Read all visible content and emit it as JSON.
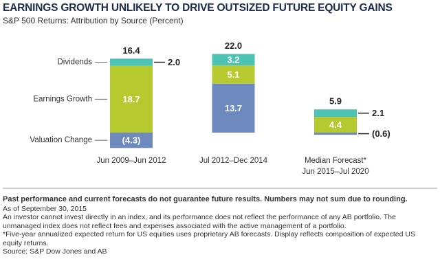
{
  "chart_data": {
    "type": "stacked_bar",
    "title": "EARNINGS GROWTH UNLIKELY TO DRIVE OUTSIZED FUTURE EQUITY GAINS",
    "subtitle": "S&P 500 Returns: Attribution by Source (Percent)",
    "categories": [
      "Jun 2009–Jun 2012",
      "Jul 2012–Dec 2014",
      "Median Forecast*\nJun 2015–Jul 2020"
    ],
    "series": [
      {
        "name": "Valuation Change",
        "color": "#6d89bd",
        "values": [
          -4.3,
          13.7,
          -0.6
        ],
        "value_labels": [
          "(4.3)",
          "13.7",
          "(0.6)"
        ]
      },
      {
        "name": "Earnings Growth",
        "color": "#b6c92f",
        "values": [
          18.7,
          5.1,
          4.4
        ],
        "value_labels": [
          "18.7",
          "5.1",
          "4.4"
        ]
      },
      {
        "name": "Dividends",
        "color": "#4cc3b4",
        "values": [
          2.0,
          3.2,
          2.1
        ],
        "value_labels": [
          "2.0",
          "3.2",
          "2.1"
        ]
      }
    ],
    "totals": [
      16.4,
      22.0,
      5.9
    ],
    "total_labels": [
      "16.4",
      "22.0",
      "5.9"
    ]
  },
  "notes": {
    "disclaimer": "Past performance and current forecasts do not guarantee future results. Numbers may not sum due to rounding.",
    "lines": [
      "As of September 30, 2015",
      "An investor cannot invest directly in an index, and its performance does not reflect the performance of any AB portfolio. The unmanaged index does not reflect fees and expenses associated with the active management of a portfolio.",
      "*Five-year annualized expected return for US equities uses proprietary AB forecasts. Display reflects composition of expected US equity returns.",
      "Source: S&P Dow Jones and AB"
    ]
  }
}
